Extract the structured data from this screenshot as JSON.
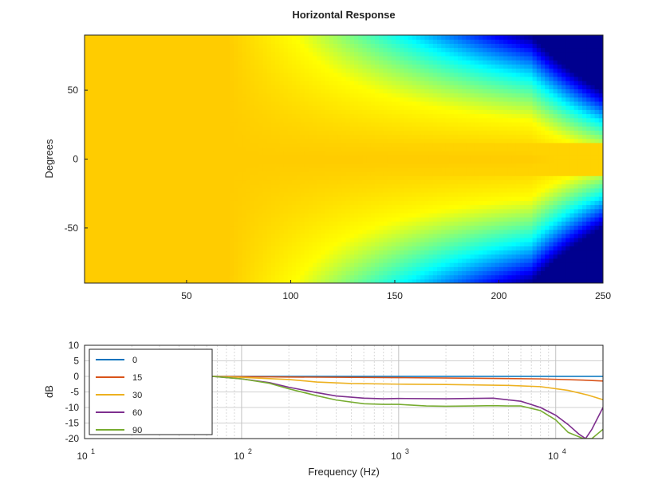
{
  "chart_data": [
    {
      "type": "heatmap",
      "title": "Horizontal Response",
      "xlabel": "",
      "ylabel": "Degrees",
      "xlim": [
        1,
        250
      ],
      "ylim": [
        -90,
        90
      ],
      "x_ticks": [
        50,
        100,
        150,
        200,
        250
      ],
      "y_ticks": [
        -50,
        0,
        50
      ],
      "x_tick_labels": [
        "50",
        "100",
        "150",
        "200",
        "250"
      ],
      "y_tick_labels": [
        "-50",
        "0",
        "50"
      ],
      "colormap": "jet",
      "colormap_colors": [
        "#00008f",
        "#0000ff",
        "#00ffff",
        "#ffff00",
        "#ffcc00"
      ],
      "grid": false
    },
    {
      "type": "line",
      "xlabel": "Frequency (Hz)",
      "ylabel": "dB",
      "xscale": "log",
      "xlim": [
        10,
        20000
      ],
      "ylim": [
        -20,
        10
      ],
      "y_ticks": [
        10,
        5,
        0,
        -5,
        -10,
        -15,
        -20
      ],
      "y_tick_labels": [
        "10",
        "5",
        "0",
        "-5",
        "-10",
        "-15",
        "-20"
      ],
      "x_ticks": [
        10,
        100,
        1000,
        10000
      ],
      "x_tick_labels": [
        "10",
        "10",
        "10",
        "10"
      ],
      "x_tick_exponents": [
        "1",
        "2",
        "3",
        "4"
      ],
      "grid": true,
      "legend_position": "top-left",
      "series": [
        {
          "name": "0",
          "color": "#0072bd",
          "x": [
            65,
            200,
            1000,
            5000,
            20000
          ],
          "y": [
            0,
            0,
            0,
            0,
            0
          ]
        },
        {
          "name": "15",
          "color": "#d95319",
          "x": [
            65,
            200,
            1000,
            3000,
            8000,
            15000,
            20000
          ],
          "y": [
            0,
            -0.2,
            -0.4,
            -0.6,
            -0.8,
            -1.2,
            -1.5
          ]
        },
        {
          "name": "30",
          "color": "#edb120",
          "x": [
            65,
            100,
            200,
            300,
            500,
            1000,
            2000,
            5000,
            8000,
            12000,
            16000,
            20000
          ],
          "y": [
            0,
            -0.3,
            -1,
            -1.8,
            -2.3,
            -2.5,
            -2.6,
            -2.9,
            -3.3,
            -4.5,
            -6,
            -7.5
          ]
        },
        {
          "name": "60",
          "color": "#7e2f8e",
          "x": [
            65,
            100,
            150,
            200,
            300,
            400,
            600,
            800,
            1000,
            2000,
            4000,
            6000,
            8000,
            10000,
            12000,
            14000,
            15500,
            17000,
            20000
          ],
          "y": [
            0,
            -0.8,
            -2,
            -3.5,
            -5.2,
            -6.3,
            -7,
            -7.2,
            -7.1,
            -7.2,
            -7.0,
            -8,
            -10,
            -12.5,
            -15.5,
            -18.5,
            -20,
            -17,
            -10
          ]
        },
        {
          "name": "90",
          "color": "#77ac30",
          "x": [
            65,
            100,
            150,
            200,
            300,
            400,
            600,
            800,
            1000,
            1500,
            2000,
            3000,
            4000,
            5000,
            6000,
            8000,
            10000,
            12000,
            15000,
            17000,
            20000
          ],
          "y": [
            0,
            -0.8,
            -2.2,
            -4,
            -6.2,
            -7.6,
            -8.8,
            -9,
            -9,
            -9.5,
            -9.6,
            -9.5,
            -9.4,
            -9.5,
            -9.5,
            -11,
            -14,
            -18,
            -20,
            -20,
            -17
          ]
        }
      ]
    }
  ]
}
